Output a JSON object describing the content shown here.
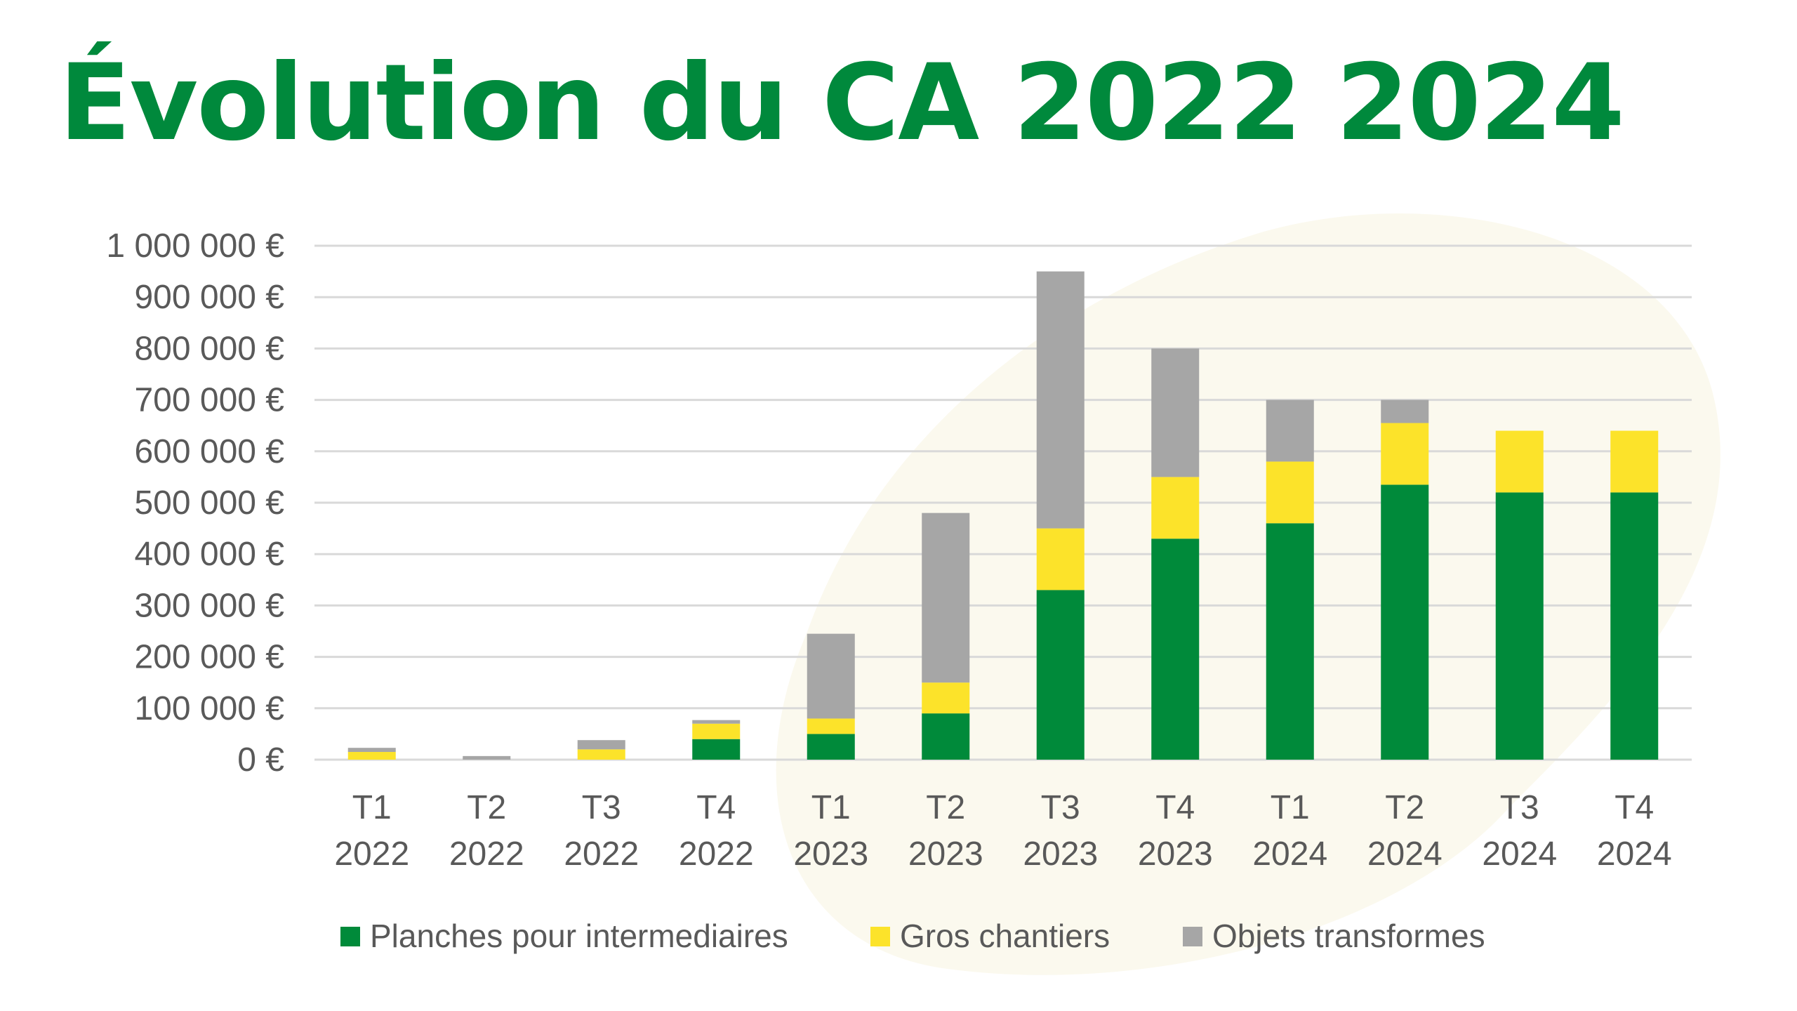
{
  "title": "Évolution du CA 2022 2024",
  "colors": {
    "title": "#00893c",
    "planches": "#008a3a",
    "gros": "#fce32a",
    "objets": "#a6a6a6",
    "grid": "#d9d9d9",
    "text": "#595959",
    "watermark": "#fbf9ee"
  },
  "chart_data": {
    "type": "bar",
    "stacked": true,
    "categories": [
      {
        "quarter": "T1",
        "year": "2022"
      },
      {
        "quarter": "T2",
        "year": "2022"
      },
      {
        "quarter": "T3",
        "year": "2022"
      },
      {
        "quarter": "T4",
        "year": "2022"
      },
      {
        "quarter": "T1",
        "year": "2023"
      },
      {
        "quarter": "T2",
        "year": "2023"
      },
      {
        "quarter": "T3",
        "year": "2023"
      },
      {
        "quarter": "T4",
        "year": "2023"
      },
      {
        "quarter": "T1",
        "year": "2024"
      },
      {
        "quarter": "T2",
        "year": "2024"
      },
      {
        "quarter": "T3",
        "year": "2024"
      },
      {
        "quarter": "T4",
        "year": "2024"
      }
    ],
    "series": [
      {
        "name": "Planches pour intermediaires",
        "color_key": "planches",
        "values": [
          0,
          0,
          0,
          40000,
          50000,
          90000,
          330000,
          430000,
          460000,
          535000,
          520000,
          520000
        ]
      },
      {
        "name": "Gros chantiers",
        "color_key": "gros",
        "values": [
          15000,
          0,
          20000,
          30000,
          30000,
          60000,
          120000,
          120000,
          120000,
          120000,
          120000,
          120000
        ]
      },
      {
        "name": "Objets transformes",
        "color_key": "objets",
        "values": [
          8000,
          7000,
          18000,
          7000,
          165000,
          330000,
          500000,
          250000,
          120000,
          45000,
          0,
          0
        ]
      }
    ],
    "y_ticks": [
      "1 000 000 €",
      "900 000 €",
      "800 000 €",
      "700 000 €",
      "600 000 €",
      "500 000 €",
      "400 000 €",
      "300 000 €",
      "200 000 €",
      "100 000 €",
      "0 €"
    ],
    "ylim": [
      0,
      1000000
    ],
    "ytick_step": 100000,
    "grid": true,
    "legend_position": "bottom"
  }
}
